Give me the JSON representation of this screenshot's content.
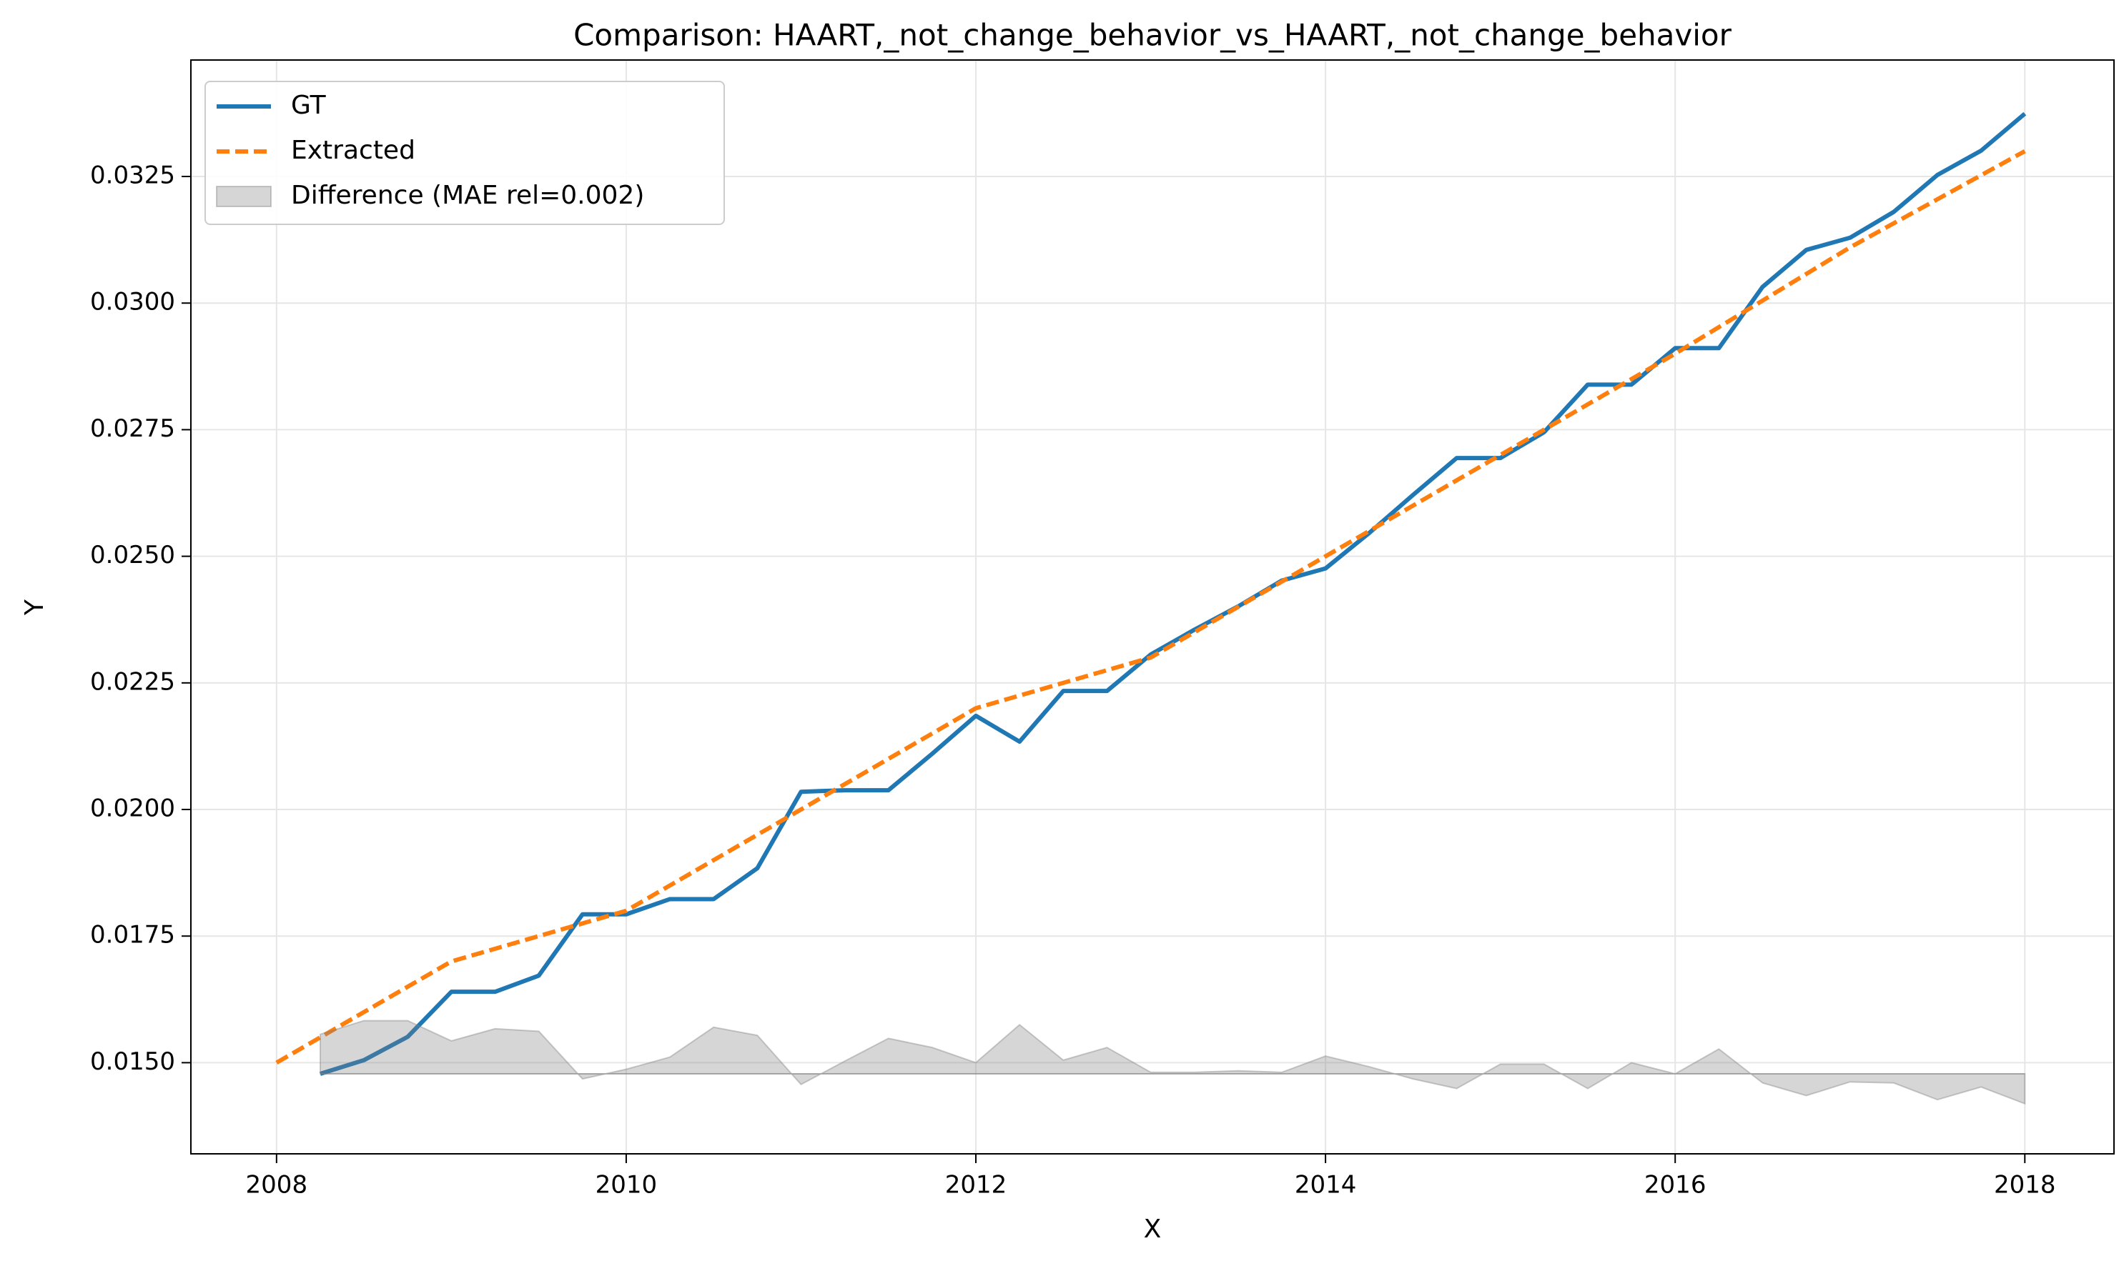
{
  "chart_data": {
    "type": "line",
    "title": "Comparison: HAART,_not_change_behavior_vs_HAART,_not_change_behavior",
    "xlabel": "X",
    "ylabel": "Y",
    "xlim": [
      2007.51,
      2018.51
    ],
    "ylim": [
      0.0132,
      0.0348
    ],
    "xticks": [
      2008,
      2010,
      2012,
      2014,
      2016,
      2018
    ],
    "yticks": [
      {
        "value": 0.015,
        "label": "0.0150"
      },
      {
        "value": 0.0175,
        "label": "0.0175"
      },
      {
        "value": 0.02,
        "label": "0.0200"
      },
      {
        "value": 0.0225,
        "label": "0.0225"
      },
      {
        "value": 0.025,
        "label": "0.0250"
      },
      {
        "value": 0.0275,
        "label": "0.0275"
      },
      {
        "value": 0.03,
        "label": "0.0300"
      },
      {
        "value": 0.0325,
        "label": "0.0325"
      }
    ],
    "grid": true,
    "legend": "upper left",
    "series": [
      {
        "name": "GT",
        "color": "#1f77b4",
        "style": "solid",
        "x": [
          2008.25,
          2008.5,
          2008.75,
          2009,
          2009.25,
          2009.5,
          2009.75,
          2010,
          2010.25,
          2010.5,
          2010.75,
          2011,
          2011.25,
          2011.5,
          2011.75,
          2012,
          2012.25,
          2012.5,
          2012.75,
          2013,
          2013.25,
          2013.5,
          2013.75,
          2014,
          2014.25,
          2014.5,
          2014.75,
          2015,
          2015.25,
          2015.5,
          2015.75,
          2016,
          2016.25,
          2016.5,
          2016.75,
          2017,
          2017.25,
          2017.5,
          2017.75,
          2018
        ],
        "values": [
          0.01478,
          0.01505,
          0.01551,
          0.0164,
          0.0164,
          0.01672,
          0.01793,
          0.01793,
          0.01823,
          0.01823,
          0.01884,
          0.02035,
          0.02038,
          0.02038,
          0.0211,
          0.02185,
          0.02134,
          0.02234,
          0.02234,
          0.02306,
          0.02355,
          0.02401,
          0.02452,
          0.02476,
          0.02546,
          0.02621,
          0.02694,
          0.02694,
          0.02745,
          0.02839,
          0.02839,
          0.02911,
          0.02911,
          0.03032,
          0.03105,
          0.03129,
          0.0318,
          0.03253,
          0.03301,
          0.03374
        ]
      },
      {
        "name": "Extracted",
        "color": "#ff7f0e",
        "style": "dashed",
        "x": [
          2008,
          2009,
          2009.5,
          2010,
          2011,
          2012,
          2013,
          2014,
          2015,
          2016,
          2017,
          2018
        ],
        "values": [
          0.015,
          0.017,
          0.0175,
          0.018,
          0.02,
          0.022,
          0.023,
          0.025,
          0.027,
          0.029,
          0.0311,
          0.033
        ]
      },
      {
        "name": "Difference (MAE rel=0.002)",
        "color": "#808080",
        "style": "area",
        "baseline": 0.01478,
        "x": [
          2008.25,
          2008.5,
          2008.75,
          2009,
          2009.25,
          2009.5,
          2009.75,
          2010,
          2010.25,
          2010.5,
          2010.75,
          2011,
          2011.25,
          2011.5,
          2011.75,
          2012,
          2012.25,
          2012.5,
          2012.75,
          2013,
          2013.25,
          2013.5,
          2013.75,
          2014,
          2014.25,
          2014.5,
          2014.75,
          2015,
          2015.25,
          2015.5,
          2015.75,
          2016,
          2016.25,
          2016.5,
          2016.75,
          2017,
          2017.25,
          2017.5,
          2017.75,
          2018
        ],
        "values": [
          0.01556,
          0.01583,
          0.01583,
          0.01543,
          0.01567,
          0.01562,
          0.01468,
          0.01487,
          0.01511,
          0.0157,
          0.01554,
          0.01457,
          0.01503,
          0.01548,
          0.0153,
          0.015,
          0.01575,
          0.01505,
          0.0153,
          0.01481,
          0.01481,
          0.01484,
          0.01481,
          0.01513,
          0.01492,
          0.01468,
          0.01449,
          0.01497,
          0.01497,
          0.01449,
          0.015,
          0.01478,
          0.01527,
          0.0146,
          0.01435,
          0.01462,
          0.0146,
          0.01427,
          0.01452,
          0.01419
        ]
      }
    ]
  }
}
